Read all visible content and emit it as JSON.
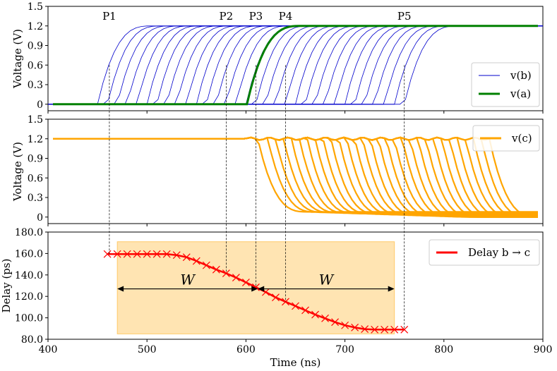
{
  "chart_data": [
    {
      "type": "line",
      "panel": "top",
      "ylabel": "Voltage (V)",
      "ylim": [
        -0.1,
        1.5
      ],
      "yticks": [
        {
          "v": 0,
          "label": "0"
        },
        {
          "v": 0.3,
          "label": "0.3"
        },
        {
          "v": 0.6,
          "label": "0.6"
        },
        {
          "v": 0.9,
          "label": "0.9"
        },
        {
          "v": 1.2,
          "label": "1.2"
        },
        {
          "v": 1.5,
          "label": "1.5"
        }
      ],
      "legend": [
        {
          "label": "v(b)",
          "color": "#0000cc"
        },
        {
          "label": "v(a)",
          "color": "#008000"
        }
      ],
      "series": [
        {
          "name": "v(b) sweep",
          "color": "#0000cc",
          "rise_starts_ns": [
            450,
            460,
            470,
            480,
            490,
            500,
            510,
            520,
            530,
            540,
            550,
            560,
            570,
            580,
            590,
            600,
            610,
            620,
            630,
            640,
            650,
            660,
            670,
            680,
            690,
            700,
            710,
            720,
            730,
            740,
            750,
            760
          ],
          "low": 0,
          "high": 1.2,
          "rise_ns": 55
        },
        {
          "name": "v(a)",
          "color": "#008000",
          "rise_start_ns": 601,
          "low": 0,
          "high": 1.2,
          "rise_ns": 55
        }
      ],
      "annotations": [
        {
          "label": "P1",
          "x": 462
        },
        {
          "label": "P2",
          "x": 580
        },
        {
          "label": "P3",
          "x": 610
        },
        {
          "label": "P4",
          "x": 640
        },
        {
          "label": "P5",
          "x": 760
        }
      ]
    },
    {
      "type": "line",
      "panel": "middle",
      "ylabel": "Voltage (V)",
      "ylim": [
        -0.1,
        1.5
      ],
      "yticks": [
        {
          "v": 0,
          "label": "0"
        },
        {
          "v": 0.3,
          "label": "0.3"
        },
        {
          "v": 0.6,
          "label": "0.6"
        },
        {
          "v": 0.9,
          "label": "0.9"
        },
        {
          "v": 1.2,
          "label": "1.2"
        },
        {
          "v": 1.5,
          "label": "1.5"
        }
      ],
      "legend": [
        {
          "label": "v(c)",
          "color": "#ffa500"
        }
      ],
      "series": [
        {
          "name": "v(c) sweep",
          "color": "#ffa500",
          "fall_starts_ns": [
            612,
            622,
            630,
            638,
            646,
            654,
            662,
            670,
            678,
            686,
            694,
            702,
            710,
            718,
            726,
            734,
            742,
            750,
            758,
            766,
            774,
            782,
            790,
            798,
            806,
            814,
            822,
            830,
            838,
            846
          ],
          "high": 1.2,
          "low": 0
        }
      ]
    },
    {
      "type": "line",
      "panel": "bottom",
      "title": "",
      "xlabel": "Time (ns)",
      "ylabel": "Delay (ps)",
      "xlim": [
        400,
        900
      ],
      "ylim": [
        80,
        180
      ],
      "xticks": [
        {
          "v": 400,
          "label": "400"
        },
        {
          "v": 500,
          "label": "500"
        },
        {
          "v": 600,
          "label": "600"
        },
        {
          "v": 700,
          "label": "700"
        },
        {
          "v": 800,
          "label": "800"
        },
        {
          "v": 900,
          "label": "900"
        }
      ],
      "yticks": [
        {
          "v": 80,
          "label": "80.0"
        },
        {
          "v": 100,
          "label": "100.0"
        },
        {
          "v": 120,
          "label": "120.0"
        },
        {
          "v": 140,
          "label": "140.0"
        },
        {
          "v": 160,
          "label": "160.0"
        },
        {
          "v": 180,
          "label": "180.0"
        }
      ],
      "legend": [
        {
          "label": "Delay b → c",
          "color": "#ff0000"
        }
      ],
      "series": [
        {
          "name": "Delay b → c",
          "color": "#ff0000",
          "x": [
            460,
            470,
            480,
            490,
            500,
            510,
            520,
            530,
            540,
            550,
            560,
            570,
            580,
            590,
            600,
            610,
            620,
            630,
            640,
            650,
            660,
            670,
            680,
            690,
            700,
            710,
            720,
            730,
            740,
            750,
            760
          ],
          "y": [
            159.5,
            159.5,
            159.5,
            159.5,
            159.5,
            159.5,
            159.5,
            158.5,
            156.5,
            153,
            149,
            145,
            141.5,
            137.5,
            133,
            128.5,
            124,
            119,
            115,
            111,
            107,
            103,
            99.5,
            96,
            93,
            91,
            89.5,
            89,
            89,
            89,
            89
          ]
        }
      ],
      "shaded_region": {
        "x": [
          470,
          750
        ],
        "y": [
          85,
          171
        ],
        "color": "#ffa500",
        "opacity": 0.3
      },
      "arrows": [
        {
          "label": "W",
          "x": [
            470,
            612
          ],
          "y": 127
        },
        {
          "label": "W",
          "x": [
            612,
            750
          ],
          "y": 127
        }
      ]
    }
  ]
}
